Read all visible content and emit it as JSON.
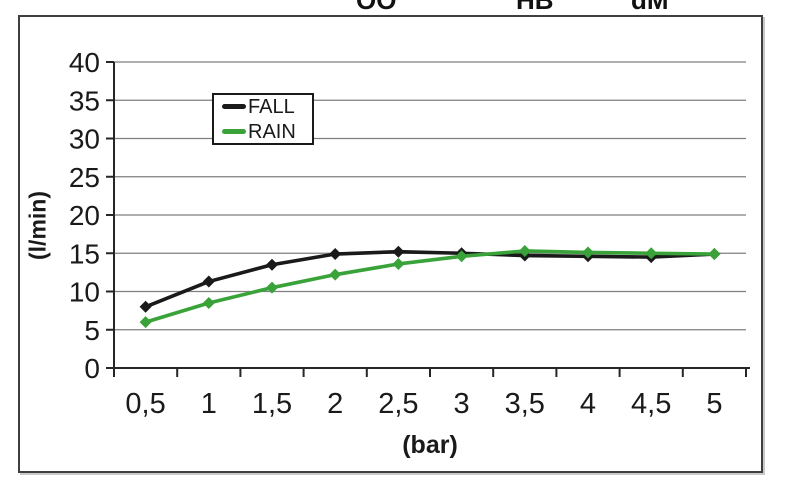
{
  "page": {
    "top_fragments": [
      {
        "text": "OO"
      },
      {
        "text": "HB"
      },
      {
        "text": "dM"
      }
    ]
  },
  "chart_data": {
    "type": "line",
    "title": "",
    "xlabel": "(bar)",
    "ylabel": "(l/min)",
    "categories": [
      "0,5",
      "1",
      "1,5",
      "2",
      "2,5",
      "3",
      "3,5",
      "4",
      "4,5",
      "5"
    ],
    "x_values": [
      0.5,
      1,
      1.5,
      2,
      2.5,
      3,
      3.5,
      4,
      4.5,
      5
    ],
    "ylim": [
      0,
      40
    ],
    "ytick_step": 5,
    "grid": true,
    "legend_position": "top-left-inside",
    "colors": {
      "grid": "#7f7f7f",
      "axis": "#262626",
      "text": "#1a1a1a"
    },
    "series": [
      {
        "name": "FALL",
        "color": "#1a1a1a",
        "values": [
          8,
          11.3,
          13.5,
          14.9,
          15.2,
          15.0,
          14.7,
          14.6,
          14.5,
          14.9
        ]
      },
      {
        "name": "RAIN",
        "color": "#39a339",
        "values": [
          6,
          8.5,
          10.5,
          12.2,
          13.6,
          14.6,
          15.3,
          15.1,
          15.0,
          14.9
        ]
      }
    ]
  }
}
